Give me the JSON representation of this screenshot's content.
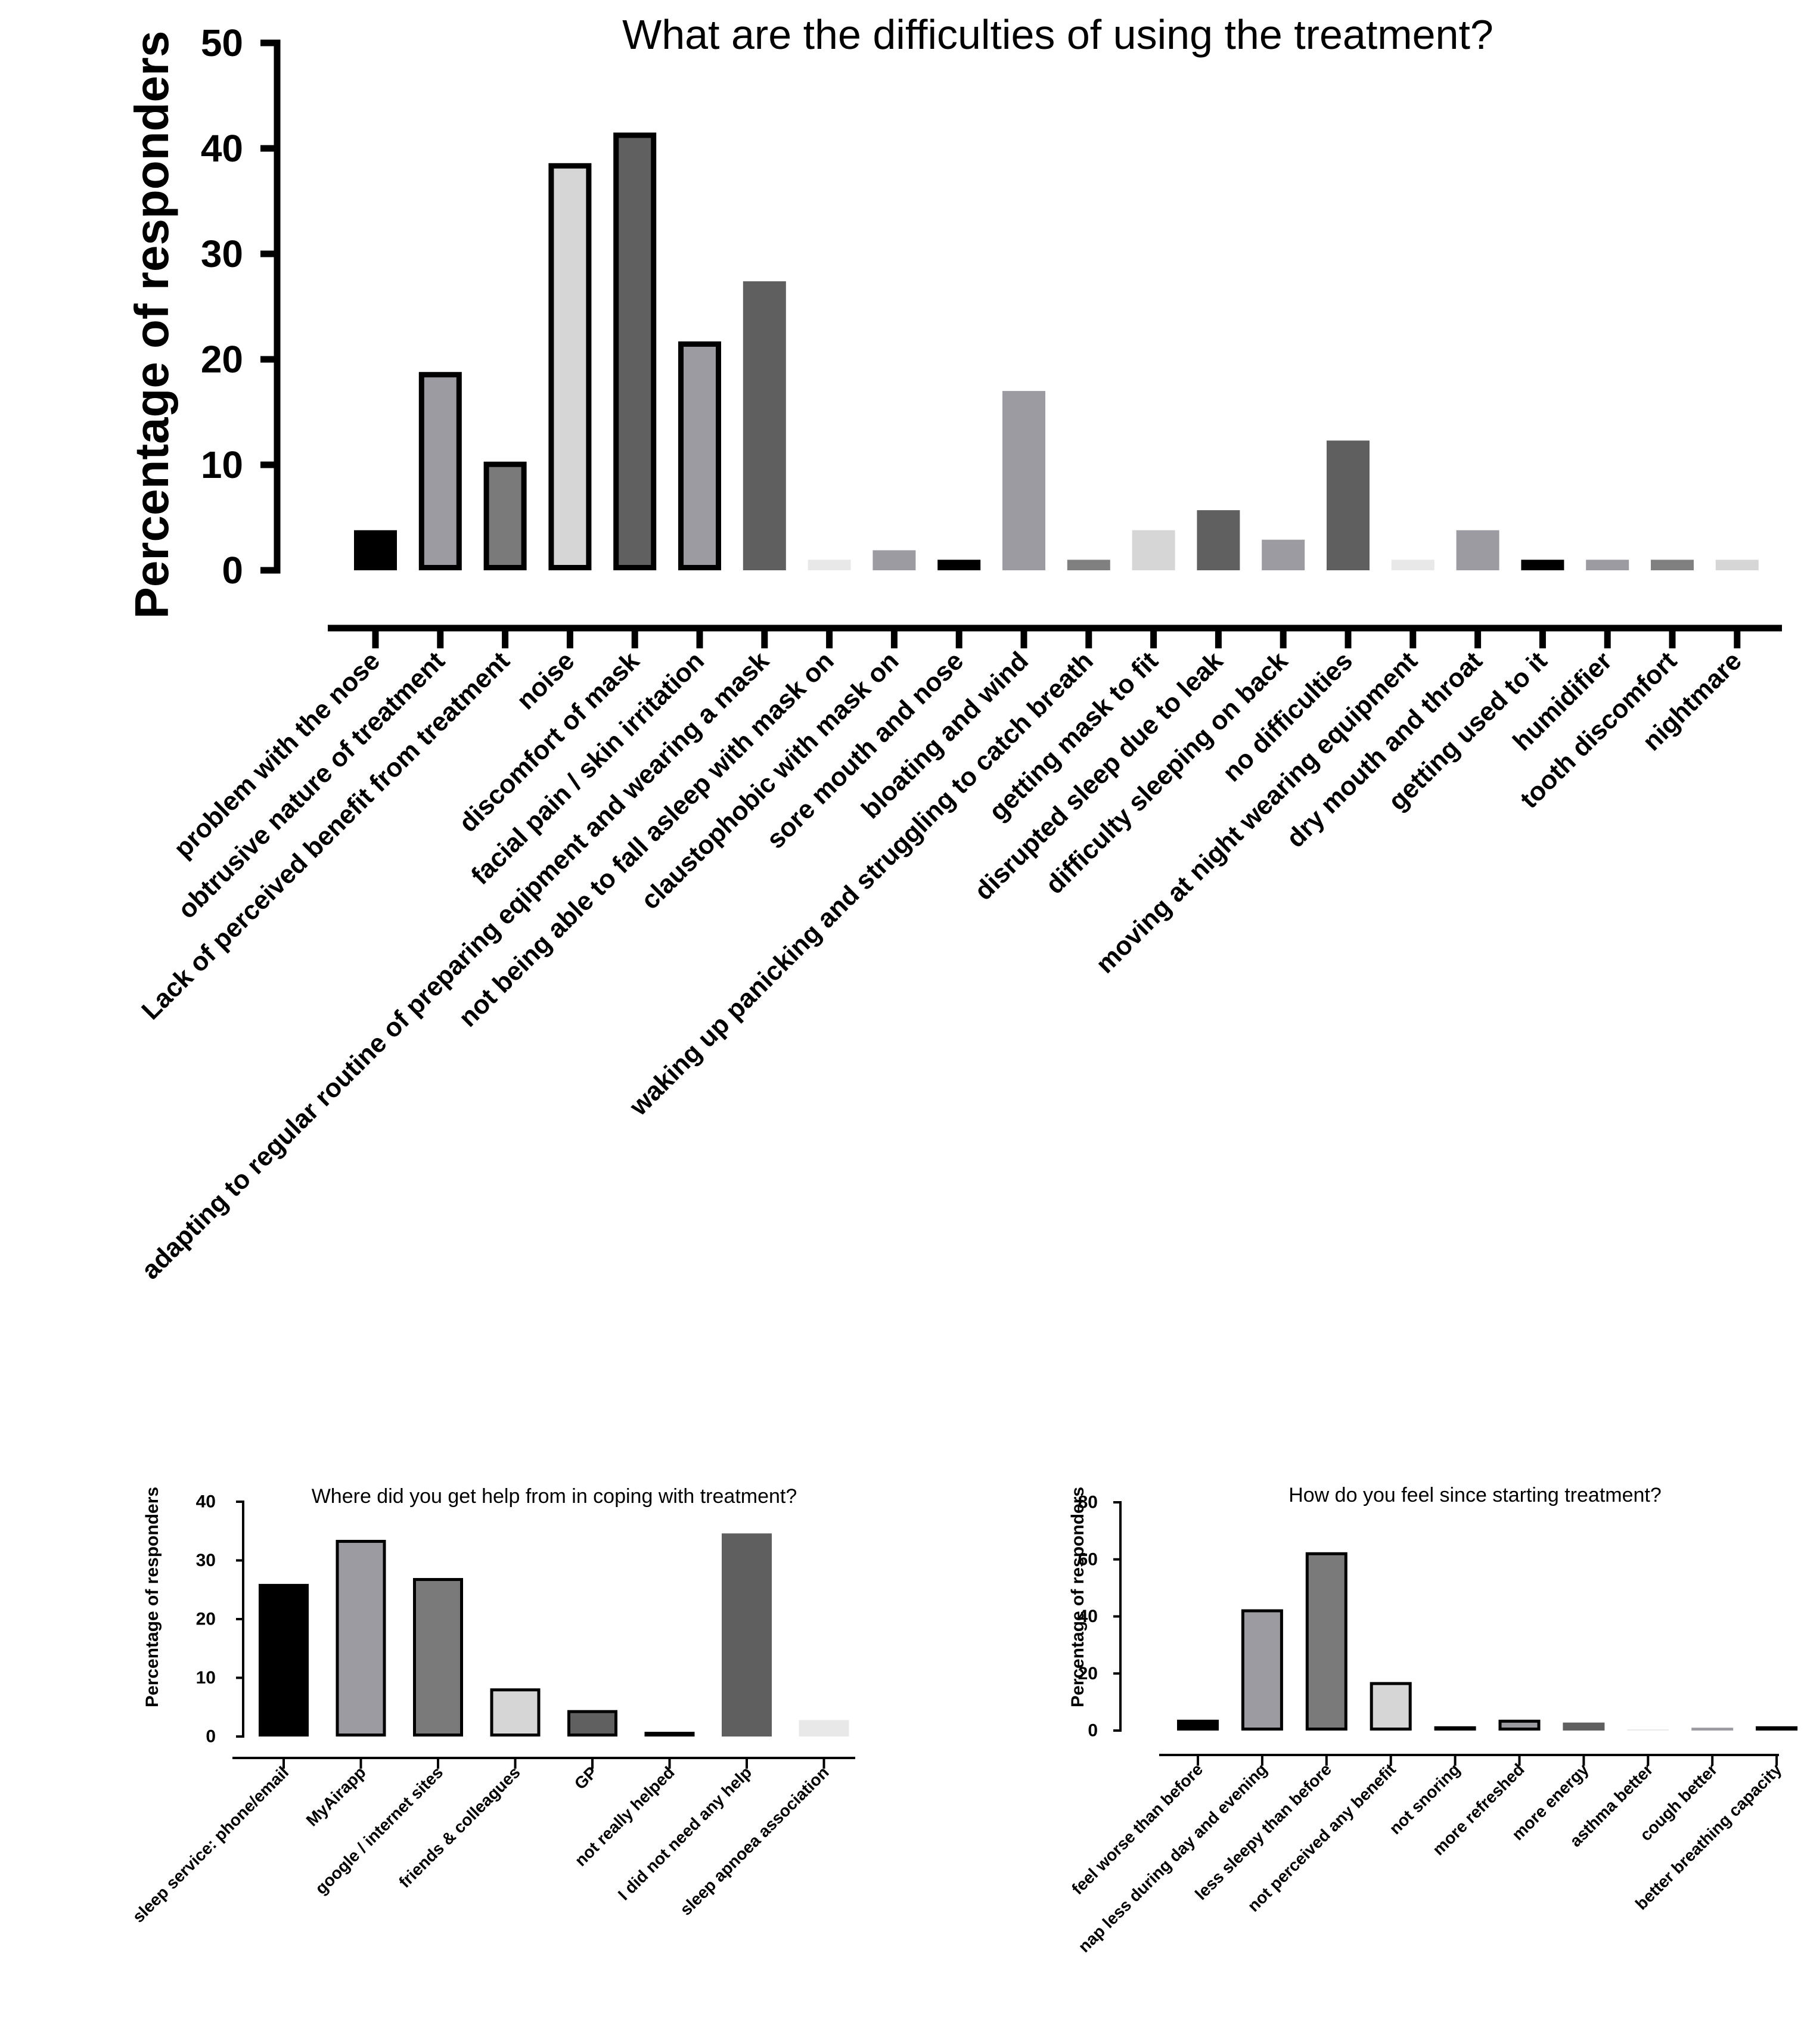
{
  "chart_data": [
    {
      "type": "bar",
      "title": "What are the difficulties of using the treatment?",
      "ylabel": "Percentage of responders",
      "xlabel": "",
      "ylim": [
        0,
        50
      ],
      "yticks": [
        0,
        10,
        20,
        30,
        40,
        50
      ],
      "grid": false,
      "categories": [
        "problem with the nose",
        "obtrusive nature of treatment",
        "Lack of perceived benefit from treatment",
        "noise",
        "discomfort of mask",
        "facial pain / skin irritation",
        "adapting to regular routine of preparing eqipment and wearing a mask",
        "not being able to fall asleep with mask on",
        "claustophobic with mask on",
        "sore mouth and nose",
        "bloating and wind",
        "waking up panicking and struggling to catch breath",
        "getting mask to fit",
        "disrupted sleep due to leak",
        "difficulty sleeping on back",
        "no difficulties",
        "moving at night wearing equipment",
        "dry mouth and throat",
        "getting used to it",
        "humidifier",
        "tooth discomfort",
        "nightmare"
      ],
      "values": [
        3.8,
        18.8,
        10.3,
        38.6,
        41.5,
        21.7,
        27.4,
        1.0,
        1.9,
        1.0,
        17.0,
        1.0,
        3.8,
        5.7,
        2.9,
        12.3,
        1.0,
        3.8,
        1.0,
        1.0,
        1.0,
        1.0
      ],
      "colors": [
        "#000000",
        "#9c9ba1",
        "#7a7a7a",
        "#d6d6d6",
        "#606060",
        "#9c9ba1",
        "#5f5f5f",
        "#e8e8e8",
        "#9c9ba1",
        "#000000",
        "#9c9ba1",
        "#808080",
        "#d6d6d6",
        "#606060",
        "#9c9ba1",
        "#5f5f5f",
        "#e8e8e8",
        "#9c9ba1",
        "#000000",
        "#9c9ba1",
        "#808080",
        "#d6d6d6"
      ],
      "outlined": [
        false,
        true,
        true,
        true,
        true,
        true,
        false,
        false,
        false,
        false,
        false,
        false,
        false,
        false,
        false,
        false,
        false,
        false,
        false,
        false,
        false,
        false
      ]
    },
    {
      "type": "bar",
      "title": "Where did you get help from in coping with treatment?",
      "ylabel": "Percentage of responders",
      "xlabel": "",
      "ylim": [
        0,
        40
      ],
      "yticks": [
        0,
        10,
        20,
        30,
        40
      ],
      "grid": false,
      "categories": [
        "sleep service: phone/email",
        "MyAirapp",
        "google / internet sites",
        "friends & colleagues",
        "GP",
        "not really helped",
        "I did not need any help",
        "sleep apnoea association"
      ],
      "values": [
        26.0,
        33.5,
        27.0,
        8.2,
        4.5,
        0.8,
        34.6,
        2.8
      ],
      "colors": [
        "#000000",
        "#9c9ba1",
        "#7a7a7a",
        "#d6d6d6",
        "#606060",
        "#9c9ba1",
        "#5f5f5f",
        "#e8e8e8"
      ],
      "outlined": [
        false,
        true,
        true,
        true,
        true,
        true,
        false,
        false
      ]
    },
    {
      "type": "bar",
      "title": "How do you feel since starting treatment?",
      "ylabel": "Percentage of responders",
      "xlabel": "",
      "ylim": [
        0,
        80
      ],
      "yticks": [
        0,
        20,
        40,
        60,
        80
      ],
      "grid": false,
      "categories": [
        "feel worse than before",
        "nap less during day and evening",
        "less sleepy than before",
        "not perceived any benefit",
        "not snoring",
        "more refreshed",
        "more energy",
        "asthma better",
        "cough better",
        "better breathing capacity"
      ],
      "values": [
        3.8,
        42.5,
        62.5,
        17.0,
        1.5,
        3.8,
        2.8,
        0.4,
        1.0,
        1.5
      ],
      "colors": [
        "#000000",
        "#9c9ba1",
        "#7a7a7a",
        "#d6d6d6",
        "#606060",
        "#9c9ba1",
        "#5f5f5f",
        "#e8e8e8",
        "#9c9ba1",
        "#000000"
      ],
      "outlined": [
        false,
        true,
        true,
        true,
        true,
        true,
        false,
        false,
        false,
        false
      ]
    }
  ]
}
